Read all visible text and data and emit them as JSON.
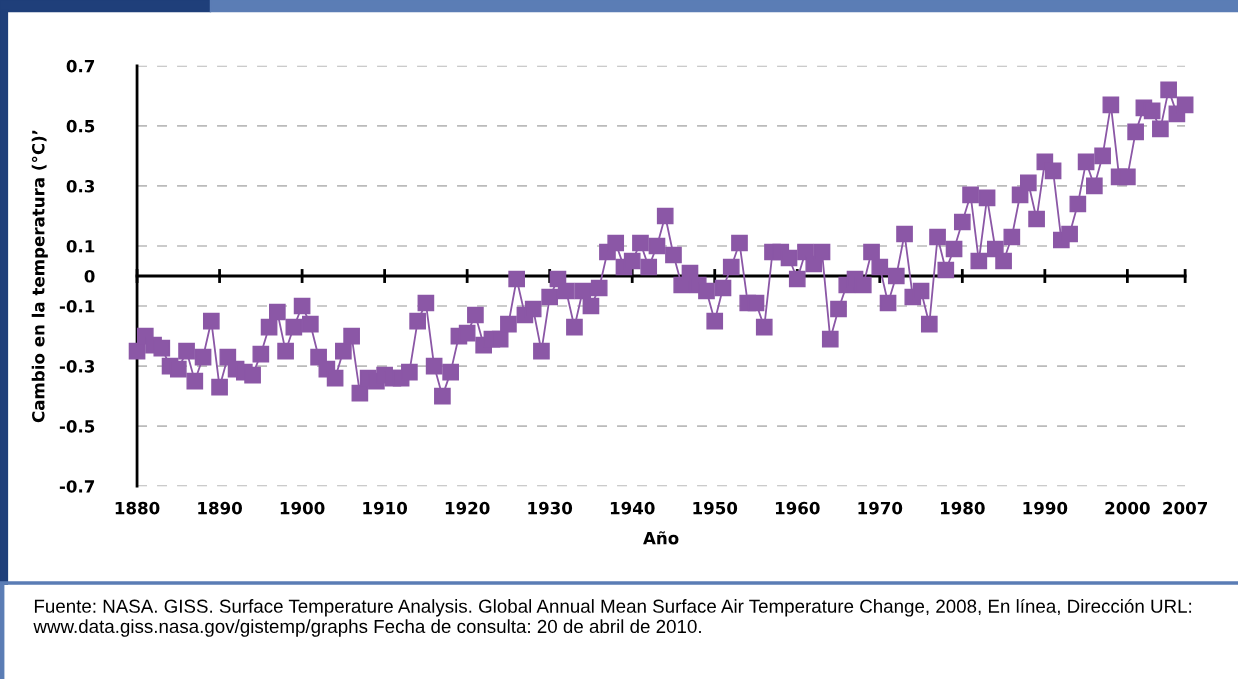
{
  "chart_data": {
    "type": "line",
    "xlabel": "Año",
    "ylabel": "Cambio en la temperatura (°C)’",
    "x": [
      1880,
      1881,
      1882,
      1883,
      1884,
      1885,
      1886,
      1887,
      1888,
      1889,
      1890,
      1891,
      1892,
      1893,
      1894,
      1895,
      1896,
      1897,
      1898,
      1899,
      1900,
      1901,
      1902,
      1903,
      1904,
      1905,
      1906,
      1907,
      1908,
      1909,
      1910,
      1911,
      1912,
      1913,
      1914,
      1915,
      1916,
      1917,
      1918,
      1919,
      1920,
      1921,
      1922,
      1923,
      1924,
      1925,
      1926,
      1927,
      1928,
      1929,
      1930,
      1931,
      1932,
      1933,
      1934,
      1935,
      1936,
      1937,
      1938,
      1939,
      1940,
      1941,
      1942,
      1943,
      1944,
      1945,
      1946,
      1947,
      1948,
      1949,
      1950,
      1951,
      1952,
      1953,
      1954,
      1955,
      1956,
      1957,
      1958,
      1959,
      1960,
      1961,
      1962,
      1963,
      1964,
      1965,
      1966,
      1967,
      1968,
      1969,
      1970,
      1971,
      1972,
      1973,
      1974,
      1975,
      1976,
      1977,
      1978,
      1979,
      1980,
      1981,
      1982,
      1983,
      1984,
      1985,
      1986,
      1987,
      1988,
      1989,
      1990,
      1991,
      1992,
      1993,
      1994,
      1995,
      1996,
      1997,
      1998,
      1999,
      2000,
      2001,
      2002,
      2003,
      2004,
      2005,
      2006,
      2007
    ],
    "series": [
      {
        "color": "#8b57a6",
        "values": [
          -0.25,
          -0.2,
          -0.23,
          -0.24,
          -0.3,
          -0.31,
          -0.25,
          -0.35,
          -0.27,
          -0.15,
          -0.37,
          -0.27,
          -0.31,
          -0.32,
          -0.33,
          -0.26,
          -0.17,
          -0.12,
          -0.25,
          -0.17,
          -0.1,
          -0.16,
          -0.27,
          -0.31,
          -0.34,
          -0.25,
          -0.2,
          -0.39,
          -0.34,
          -0.35,
          -0.33,
          -0.34,
          -0.34,
          -0.32,
          -0.15,
          -0.09,
          -0.3,
          -0.4,
          -0.32,
          -0.2,
          -0.19,
          -0.13,
          -0.23,
          -0.21,
          -0.21,
          -0.16,
          -0.01,
          -0.13,
          -0.11,
          -0.25,
          -0.07,
          -0.01,
          -0.05,
          -0.17,
          -0.05,
          -0.1,
          -0.04,
          0.08,
          0.11,
          0.03,
          0.05,
          0.11,
          0.03,
          0.1,
          0.2,
          0.07,
          -0.03,
          0.01,
          -0.03,
          -0.05,
          -0.15,
          -0.04,
          0.03,
          0.11,
          -0.09,
          -0.09,
          -0.17,
          0.08,
          0.08,
          0.06,
          -0.01,
          0.08,
          0.04,
          0.08,
          -0.21,
          -0.11,
          -0.03,
          -0.01,
          -0.03,
          0.08,
          0.03,
          -0.09,
          0.0,
          0.14,
          -0.07,
          -0.05,
          -0.16,
          0.13,
          0.02,
          0.09,
          0.18,
          0.27,
          0.05,
          0.26,
          0.09,
          0.05,
          0.13,
          0.27,
          0.31,
          0.19,
          0.38,
          0.35,
          0.12,
          0.14,
          0.24,
          0.38,
          0.3,
          0.4,
          0.57,
          0.33,
          0.33,
          0.48,
          0.56,
          0.55,
          0.49,
          0.62,
          0.54,
          0.57
        ]
      }
    ],
    "xlim": [
      1880,
      2007
    ],
    "xticks": [
      1880,
      1890,
      1900,
      1910,
      1920,
      1930,
      1940,
      1950,
      1960,
      1970,
      1980,
      1990,
      2000,
      2007
    ],
    "ylim": [
      -0.7,
      0.7
    ],
    "yticks": [
      -0.7,
      -0.5,
      -0.3,
      -0.1,
      0,
      0.1,
      0.3,
      0.5,
      0.7
    ],
    "grid": "y",
    "marker": "square",
    "line_style": "solid",
    "legend": false,
    "annotations": [
      "Fuente: NASA. GISS. Surface Temperature Analysis. Global Annual Mean Surface Air Temperature Change, 2008, En línea, Dirección URL: www.data.giss.nasa.gov/gistemp/graphs Fecha de consulta: 20 de abril de 2010."
    ]
  }
}
